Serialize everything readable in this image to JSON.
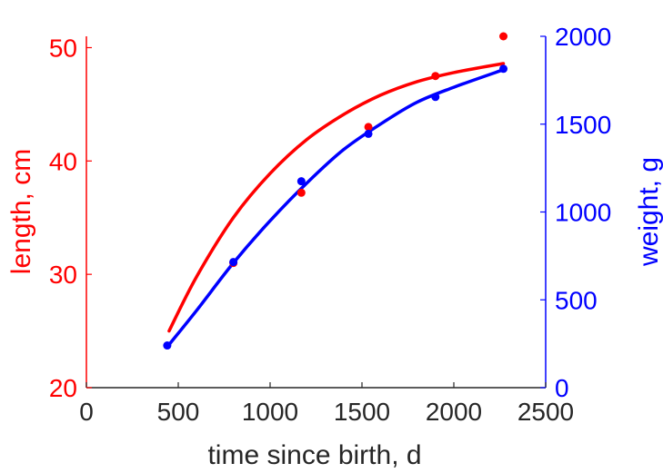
{
  "chart_data": {
    "type": "line",
    "x": [
      450,
      800,
      1170,
      1535,
      1900,
      2270
    ],
    "xlabel": "time since birth, d",
    "xlim": [
      0,
      2500
    ],
    "xticks": [
      0,
      500,
      1000,
      1500,
      2000,
      2500
    ],
    "left_axis": {
      "label": "length, cm",
      "color": "#ff0000",
      "ylim": [
        20,
        51
      ],
      "ticks": [
        20,
        30,
        40,
        50
      ]
    },
    "right_axis": {
      "label": "weight, g",
      "color": "#0000ff",
      "ylim": [
        0,
        2000
      ],
      "ticks": [
        0,
        500,
        1000,
        1500,
        2000
      ]
    },
    "series": [
      {
        "axis": "left",
        "color": "#ff0000",
        "points": {
          "x": [
            800,
            1170,
            1535,
            1900,
            2270
          ],
          "y": [
            31.0,
            37.2,
            43.0,
            47.5,
            51.0
          ]
        },
        "fit": {
          "x": [
            450,
            600,
            800,
            1000,
            1200,
            1400,
            1600,
            1800,
            2000,
            2270
          ],
          "y": [
            25.0,
            29.8,
            35.0,
            38.9,
            41.9,
            44.1,
            45.8,
            47.0,
            47.8,
            48.6
          ]
        }
      },
      {
        "axis": "right",
        "color": "#0000ff",
        "points": {
          "x": [
            440,
            800,
            1170,
            1535,
            1900,
            2270
          ],
          "y": [
            240,
            715,
            1175,
            1445,
            1655,
            1815
          ]
        },
        "fit": {
          "x": [
            450,
            600,
            800,
            1000,
            1200,
            1400,
            1600,
            1800,
            2000,
            2270
          ],
          "y": [
            245,
            440,
            710,
            950,
            1165,
            1355,
            1500,
            1625,
            1710,
            1810
          ]
        }
      }
    ]
  }
}
